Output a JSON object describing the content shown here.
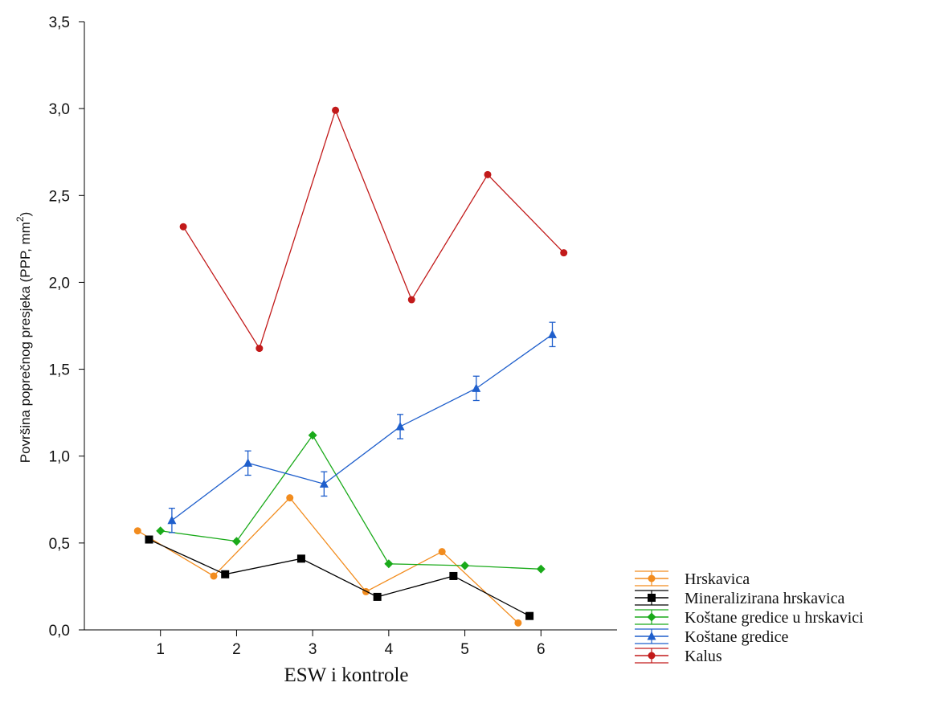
{
  "chart_data": {
    "type": "line",
    "title": "",
    "xlabel": "ESW i kontrole",
    "ylabel_main": "Površina poprečnog presjeka (PPP, mm",
    "ylabel_sup": "2",
    "ylabel_close": ")",
    "xlim": [
      0,
      7
    ],
    "ylim": [
      0,
      3.5
    ],
    "x_ticks": [
      1,
      2,
      3,
      4,
      5,
      6
    ],
    "x_tick_labels": [
      "1",
      "2",
      "3",
      "4",
      "5",
      "6"
    ],
    "y_ticks": [
      0,
      0.5,
      1.0,
      1.5,
      2.0,
      2.5,
      3.0,
      3.5
    ],
    "y_tick_labels": [
      "0,0",
      "0,5",
      "1,0",
      "1,5",
      "2,0",
      "2,5",
      "3,0",
      "3,5"
    ],
    "grid": false,
    "legend_position": "bottom-right",
    "series": [
      {
        "name": "Hrskavica",
        "color": "#f28c1e",
        "marker": "circle",
        "x": [
          0.7,
          1.7,
          2.7,
          3.7,
          4.7,
          5.7
        ],
        "values": [
          0.57,
          0.31,
          0.76,
          0.22,
          0.45,
          0.04
        ]
      },
      {
        "name": "Mineralizirana hrskavica",
        "color": "#000000",
        "marker": "square",
        "x": [
          0.85,
          1.85,
          2.85,
          3.85,
          4.85,
          5.85
        ],
        "values": [
          0.52,
          0.32,
          0.41,
          0.19,
          0.31,
          0.08
        ]
      },
      {
        "name": "Koštane gredice u hrskavici",
        "color": "#1aaa1a",
        "marker": "diamond",
        "x": [
          1.0,
          2.0,
          3.0,
          4.0,
          5.0,
          6.0
        ],
        "values": [
          0.57,
          0.51,
          1.12,
          0.38,
          0.37,
          0.35
        ]
      },
      {
        "name": "Koštane gredice",
        "color": "#1f5fcc",
        "marker": "triangle",
        "x": [
          1.15,
          2.15,
          3.15,
          4.15,
          5.15,
          6.15
        ],
        "values": [
          0.63,
          0.96,
          0.84,
          1.17,
          1.39,
          1.7
        ],
        "error": [
          0.07,
          0.07,
          0.07,
          0.07,
          0.07,
          0.07
        ]
      },
      {
        "name": "Kalus",
        "color": "#c21a1a",
        "marker": "circle",
        "x": [
          1.3,
          2.3,
          3.3,
          4.3,
          5.3,
          6.3
        ],
        "values": [
          2.32,
          1.62,
          2.99,
          1.9,
          2.62,
          2.17
        ]
      }
    ]
  }
}
